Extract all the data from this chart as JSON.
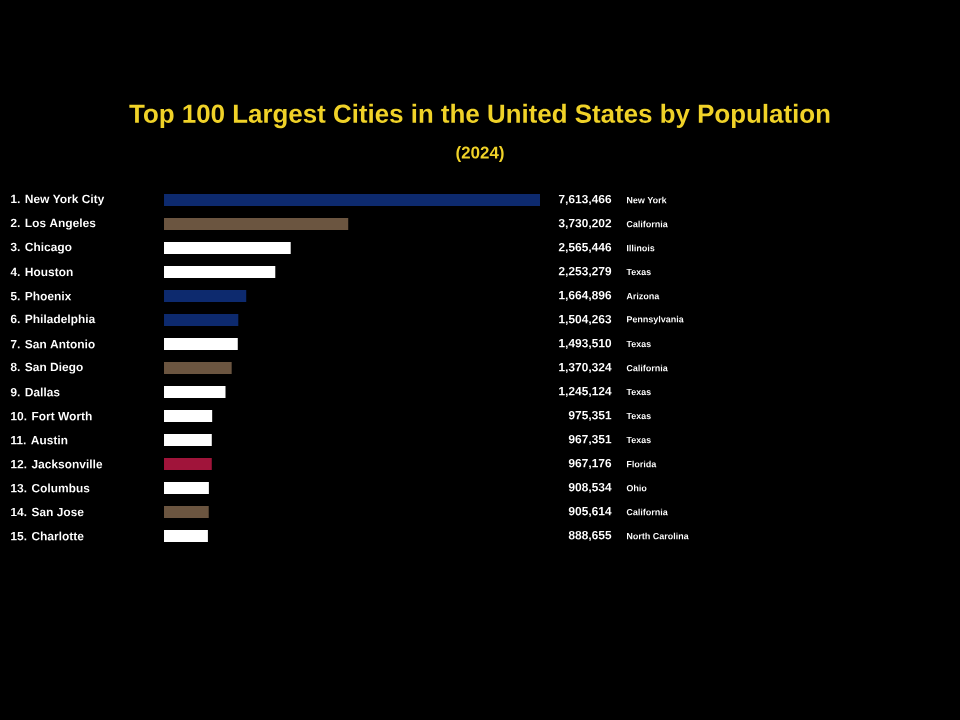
{
  "chart_data": {
    "type": "bar",
    "orientation": "horizontal",
    "title": "Top 100 Largest Cities in the United States by Population",
    "subtitle": "(2024)",
    "categories": [
      "1. New York City",
      "2. Los Angeles",
      "3. Chicago",
      "4. Houston",
      "5. Phoenix",
      "6. Philadelphia",
      "7. San Antonio",
      "8. San Diego",
      "9. Dallas",
      "10. Fort Worth",
      "11. Austin",
      "12. Jacksonville",
      "13. Columbus",
      "14. San Jose",
      "15. Charlotte"
    ],
    "values": [
      7613466,
      3730202,
      2565446,
      2253279,
      1664896,
      1504263,
      1493510,
      1370324,
      1245124,
      975351,
      967351,
      967176,
      908534,
      905614,
      888655
    ],
    "value_labels": [
      "7,613,466",
      "3,730,202",
      "2,565,446",
      "2,253,279",
      "1,664,896",
      "1,504,263",
      "1,493,510",
      "1,370,324",
      "1,245,124",
      "975,351",
      "967,351",
      "967,176",
      "908,534",
      "905,614",
      "888,655"
    ],
    "colors": [
      "#0d2a6e",
      "#6b5540",
      "#ffffff",
      "#ffffff",
      "#0d2a6e",
      "#0d2a6e",
      "#ffffff",
      "#6b5540",
      "#ffffff",
      "#ffffff",
      "#ffffff",
      "#a0143a",
      "#ffffff",
      "#6b5540",
      "#ffffff"
    ],
    "annotations": [
      "New York",
      "California",
      "Illinois",
      "Texas",
      "Arizona",
      "Pennsylvania",
      "Texas",
      "California",
      "Texas",
      "Texas",
      "Texas",
      "Florida",
      "Ohio",
      "California",
      "North Carolina"
    ]
  }
}
